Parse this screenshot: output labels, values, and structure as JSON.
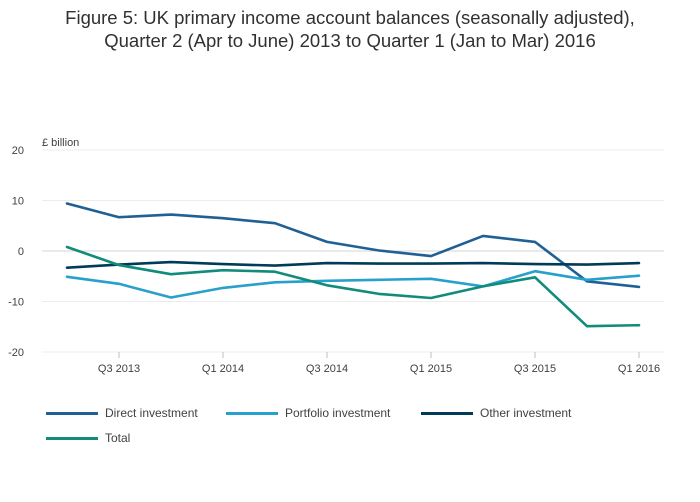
{
  "title": {
    "line1": "Figure 5: UK primary income account balances (seasonally adjusted),",
    "line2": "Quarter 2 (Apr to June) 2013 to Quarter 1 (Jan to Mar) 2016"
  },
  "chart_data": {
    "type": "line",
    "title": "Figure 5: UK primary income account balances (seasonally adjusted), Quarter 2 (Apr to June) 2013 to Quarter 1 (Jan to Mar) 2016",
    "xlabel": "",
    "ylabel": "£ billion",
    "ylim": [
      -20,
      20
    ],
    "yticks": [
      20,
      10,
      0,
      -10,
      -20
    ],
    "grid": true,
    "x": [
      "Q2 2013",
      "Q3 2013",
      "Q4 2013",
      "Q1 2014",
      "Q2 2014",
      "Q3 2014",
      "Q4 2014",
      "Q1 2015",
      "Q2 2015",
      "Q3 2015",
      "Q4 2015",
      "Q1 2016"
    ],
    "xtick_labels": [
      "Q3 2013",
      "Q1 2014",
      "Q3 2014",
      "Q1 2015",
      "Q3 2015",
      "Q1 2016"
    ],
    "xtick_indices": [
      1,
      3,
      5,
      7,
      9,
      11
    ],
    "series": [
      {
        "name": "Direct investment",
        "color": "#206095",
        "values": [
          9.4,
          6.7,
          7.2,
          6.5,
          5.5,
          1.8,
          0.1,
          -1.0,
          3.0,
          1.8,
          -6.0,
          -7.1
        ]
      },
      {
        "name": "Portfolio investment",
        "color": "#27A0CC",
        "values": [
          -5.1,
          -6.5,
          -9.2,
          -7.3,
          -6.2,
          -5.9,
          -5.7,
          -5.5,
          -7.0,
          -4.0,
          -5.7,
          -4.9
        ]
      },
      {
        "name": "Other investment",
        "color": "#003C57",
        "values": [
          -3.3,
          -2.7,
          -2.2,
          -2.6,
          -2.9,
          -2.4,
          -2.5,
          -2.5,
          -2.4,
          -2.6,
          -2.7,
          -2.4
        ]
      },
      {
        "name": "Total",
        "color": "#118C7B",
        "values": [
          0.8,
          -2.8,
          -4.6,
          -3.8,
          -4.1,
          -6.8,
          -8.5,
          -9.3,
          -7.0,
          -5.2,
          -14.9,
          -14.7
        ]
      }
    ],
    "legend_position": "bottom"
  }
}
